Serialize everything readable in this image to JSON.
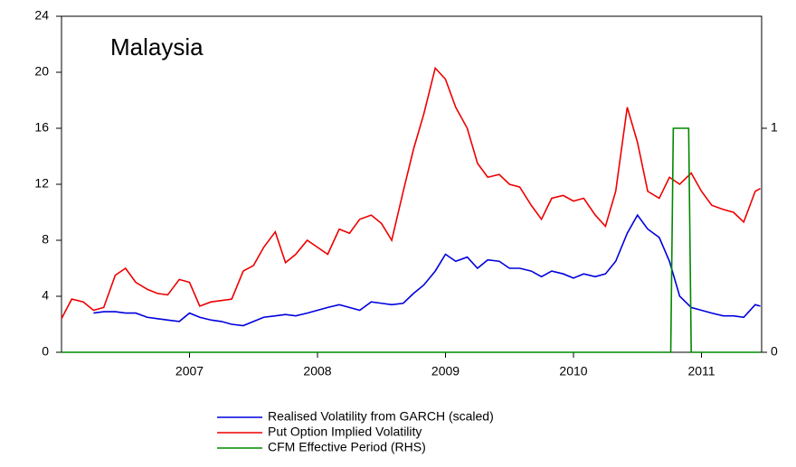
{
  "chart_data": {
    "type": "line",
    "title": "Malaysia",
    "x": [
      2006.0,
      2006.08,
      2006.17,
      2006.25,
      2006.33,
      2006.42,
      2006.5,
      2006.58,
      2006.67,
      2006.75,
      2006.83,
      2006.92,
      2007.0,
      2007.08,
      2007.17,
      2007.25,
      2007.33,
      2007.42,
      2007.5,
      2007.58,
      2007.67,
      2007.75,
      2007.83,
      2007.92,
      2008.0,
      2008.08,
      2008.17,
      2008.25,
      2008.33,
      2008.42,
      2008.5,
      2008.58,
      2008.67,
      2008.75,
      2008.83,
      2008.92,
      2009.0,
      2009.08,
      2009.17,
      2009.25,
      2009.33,
      2009.42,
      2009.5,
      2009.58,
      2009.67,
      2009.75,
      2009.83,
      2009.92,
      2010.0,
      2010.08,
      2010.17,
      2010.25,
      2010.33,
      2010.42,
      2010.5,
      2010.58,
      2010.67,
      2010.75,
      2010.83,
      2010.92,
      2011.0,
      2011.08,
      2011.17,
      2011.25,
      2011.33,
      2011.42,
      2011.46
    ],
    "series": [
      {
        "name": "Realised Volatility from GARCH (scaled)",
        "color": "#0000dd",
        "values": [
          null,
          null,
          null,
          2.8,
          2.9,
          2.9,
          2.8,
          2.8,
          2.5,
          2.4,
          2.3,
          2.2,
          2.8,
          2.5,
          2.3,
          2.2,
          2.0,
          1.9,
          2.2,
          2.5,
          2.6,
          2.7,
          2.6,
          2.8,
          3.0,
          3.2,
          3.4,
          3.2,
          3.0,
          3.6,
          3.5,
          3.4,
          3.5,
          4.2,
          4.8,
          5.8,
          7.0,
          6.5,
          6.8,
          6.0,
          6.6,
          6.5,
          6.0,
          6.0,
          5.8,
          5.4,
          5.8,
          5.6,
          5.3,
          5.6,
          5.4,
          5.6,
          6.5,
          8.5,
          9.8,
          8.8,
          8.2,
          6.5,
          4.0,
          3.2,
          3.0,
          2.8,
          2.6,
          2.6,
          2.5,
          3.4,
          3.3
        ]
      },
      {
        "name": "Put Option Implied Volatility",
        "color": "#ee0000",
        "values": [
          2.4,
          3.8,
          3.6,
          3.0,
          3.2,
          5.5,
          6.0,
          5.0,
          4.5,
          4.2,
          4.1,
          5.2,
          5.0,
          3.3,
          3.6,
          3.7,
          3.8,
          5.8,
          6.2,
          7.5,
          8.6,
          6.4,
          7.0,
          8.0,
          7.5,
          7.0,
          8.8,
          8.5,
          9.5,
          9.8,
          9.2,
          8.0,
          11.5,
          14.5,
          17.0,
          20.3,
          19.5,
          17.5,
          16.0,
          13.5,
          12.5,
          12.7,
          12.0,
          11.8,
          10.5,
          9.5,
          11.0,
          11.2,
          10.8,
          11.0,
          9.8,
          9.0,
          11.5,
          17.5,
          15.0,
          11.5,
          11.0,
          12.5,
          12.0,
          12.8,
          11.5,
          10.5,
          10.2,
          10.0,
          9.3,
          11.5,
          11.7
        ]
      },
      {
        "name": "CFM Effective Period (RHS)",
        "color": "#008800",
        "axis": "y2",
        "x": [
          2006.0,
          2010.76,
          2010.78,
          2010.9,
          2010.92,
          2011.46
        ],
        "values": [
          0,
          0,
          1,
          1,
          0,
          0
        ]
      }
    ],
    "xlim": [
      2006.0,
      2011.47
    ],
    "xticks": [
      2007,
      2008,
      2009,
      2010,
      2011
    ],
    "ylim": [
      0,
      24
    ],
    "yticks": [
      0,
      4,
      8,
      12,
      16,
      20,
      24
    ],
    "y2lim": [
      0,
      1.5
    ],
    "y2ticks": [
      0,
      1
    ]
  }
}
